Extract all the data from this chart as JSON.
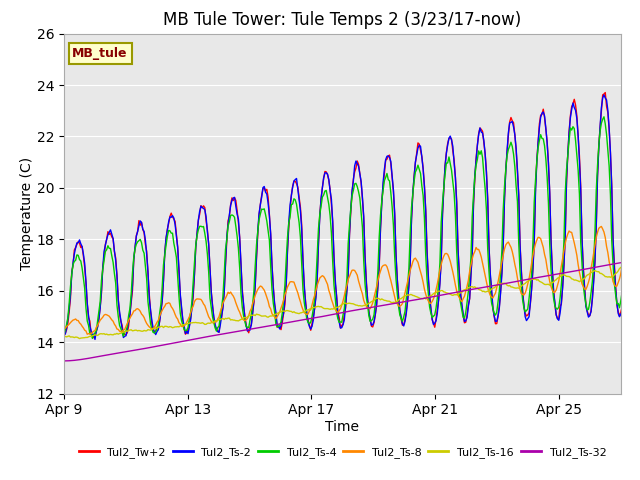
{
  "title": "MB Tule Tower: Tule Temps 2 (3/23/17-now)",
  "xlabel": "Time",
  "ylabel": "Temperature (C)",
  "ylim": [
    12,
    26
  ],
  "yticks": [
    12,
    14,
    16,
    18,
    20,
    22,
    24,
    26
  ],
  "background_color": "#ffffff",
  "plot_bg_color": "#e8e8e8",
  "legend_label": "MB_tule",
  "legend_box_color": "#ffffcc",
  "legend_box_edge": "#999900",
  "legend_text_color": "#880000",
  "series": [
    {
      "label": "Tul2_Tw+2",
      "color": "#ff0000"
    },
    {
      "label": "Tul2_Ts-2",
      "color": "#0000ff"
    },
    {
      "label": "Tul2_Ts-4",
      "color": "#00cc00"
    },
    {
      "label": "Tul2_Ts-8",
      "color": "#ff8800"
    },
    {
      "label": "Tul2_Ts-16",
      "color": "#cccc00"
    },
    {
      "label": "Tul2_Ts-32",
      "color": "#aa00aa"
    }
  ],
  "xtick_labels": [
    "Apr 9",
    "Apr 13",
    "Apr 17",
    "Apr 21",
    "Apr 25"
  ],
  "xtick_positions": [
    0,
    4,
    8,
    12,
    16
  ],
  "grid_color": "#ffffff",
  "title_fontsize": 12,
  "axis_fontsize": 10,
  "tick_fontsize": 10
}
